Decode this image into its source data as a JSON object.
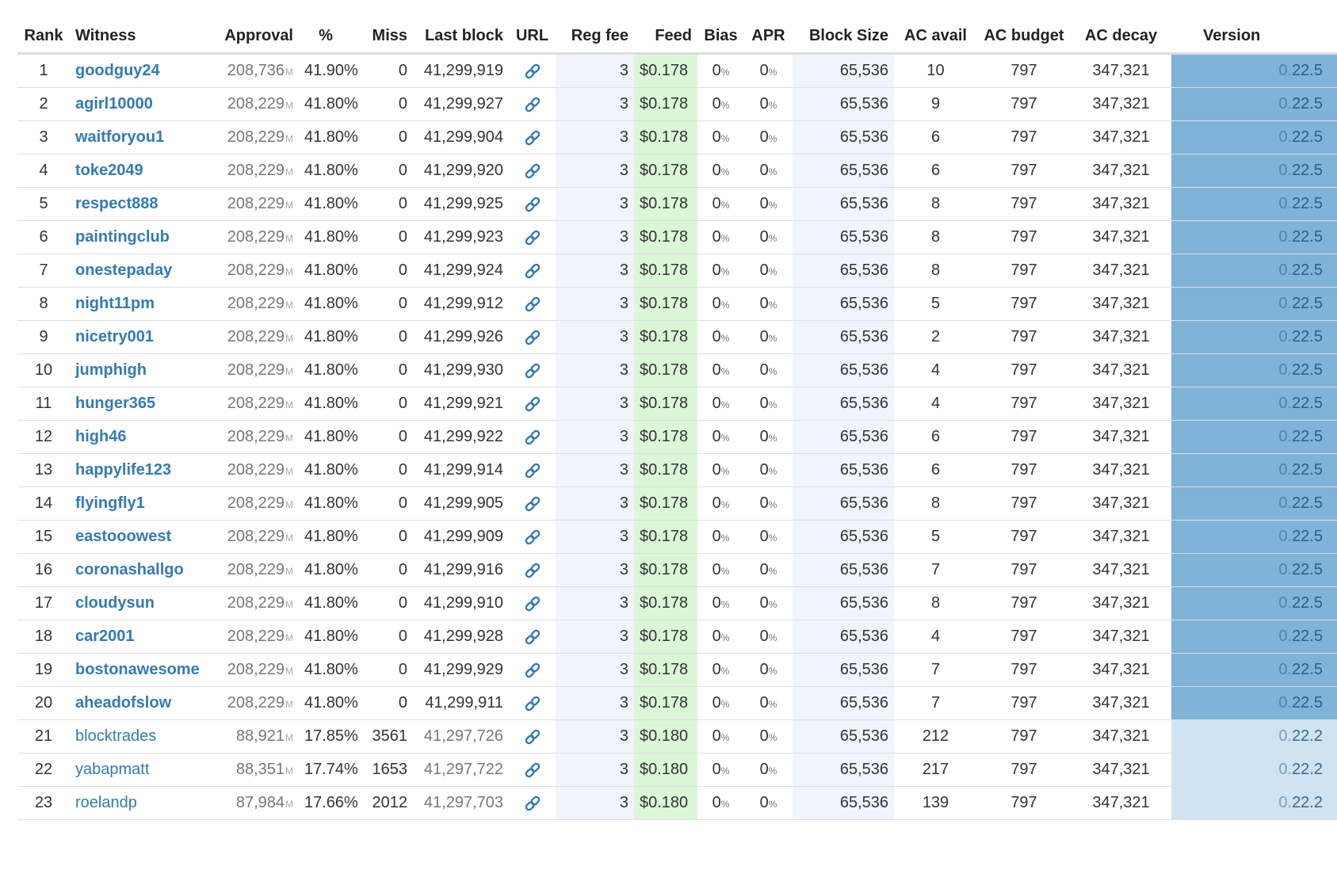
{
  "colors": {
    "link": "#337ab7",
    "version_active_bg": "#7fb3d8",
    "version_inactive_bg": "#cfe3f2",
    "feed_bg": "#dbf7d8",
    "regfee_bg": "#f2f4fd"
  },
  "units": {
    "approval": "M",
    "percent": "%"
  },
  "url_icon": "link-icon",
  "headers": {
    "rank": "Rank",
    "witness": "Witness",
    "approval": "Approval",
    "percent": "%",
    "miss": "Miss",
    "last_block": "Last block",
    "url": "URL",
    "reg_fee": "Reg fee",
    "feed": "Feed",
    "bias": "Bias",
    "apr": "APR",
    "block_size": "Block Size",
    "ac_avail": "AC avail",
    "ac_budget": "AC budget",
    "ac_decay": "AC decay",
    "version": "Version"
  },
  "rows": [
    {
      "rank": "1",
      "witness": "goodguy24",
      "approval": "208,736",
      "percent": "41.90%",
      "miss": "0",
      "last_block": "41,299,919",
      "reg_fee": "3",
      "feed": "$0.178",
      "bias": "0",
      "apr": "0",
      "block_size": "65,536",
      "ac_avail": "10",
      "ac_budget": "797",
      "ac_decay": "347,321",
      "version_lead": "0.",
      "version_rest": "22.5",
      "active": true
    },
    {
      "rank": "2",
      "witness": "agirl10000",
      "approval": "208,229",
      "percent": "41.80%",
      "miss": "0",
      "last_block": "41,299,927",
      "reg_fee": "3",
      "feed": "$0.178",
      "bias": "0",
      "apr": "0",
      "block_size": "65,536",
      "ac_avail": "9",
      "ac_budget": "797",
      "ac_decay": "347,321",
      "version_lead": "0.",
      "version_rest": "22.5",
      "active": true
    },
    {
      "rank": "3",
      "witness": "waitforyou1",
      "approval": "208,229",
      "percent": "41.80%",
      "miss": "0",
      "last_block": "41,299,904",
      "reg_fee": "3",
      "feed": "$0.178",
      "bias": "0",
      "apr": "0",
      "block_size": "65,536",
      "ac_avail": "6",
      "ac_budget": "797",
      "ac_decay": "347,321",
      "version_lead": "0.",
      "version_rest": "22.5",
      "active": true
    },
    {
      "rank": "4",
      "witness": "toke2049",
      "approval": "208,229",
      "percent": "41.80%",
      "miss": "0",
      "last_block": "41,299,920",
      "reg_fee": "3",
      "feed": "$0.178",
      "bias": "0",
      "apr": "0",
      "block_size": "65,536",
      "ac_avail": "6",
      "ac_budget": "797",
      "ac_decay": "347,321",
      "version_lead": "0.",
      "version_rest": "22.5",
      "active": true
    },
    {
      "rank": "5",
      "witness": "respect888",
      "approval": "208,229",
      "percent": "41.80%",
      "miss": "0",
      "last_block": "41,299,925",
      "reg_fee": "3",
      "feed": "$0.178",
      "bias": "0",
      "apr": "0",
      "block_size": "65,536",
      "ac_avail": "8",
      "ac_budget": "797",
      "ac_decay": "347,321",
      "version_lead": "0.",
      "version_rest": "22.5",
      "active": true
    },
    {
      "rank": "6",
      "witness": "paintingclub",
      "approval": "208,229",
      "percent": "41.80%",
      "miss": "0",
      "last_block": "41,299,923",
      "reg_fee": "3",
      "feed": "$0.178",
      "bias": "0",
      "apr": "0",
      "block_size": "65,536",
      "ac_avail": "8",
      "ac_budget": "797",
      "ac_decay": "347,321",
      "version_lead": "0.",
      "version_rest": "22.5",
      "active": true
    },
    {
      "rank": "7",
      "witness": "onestepaday",
      "approval": "208,229",
      "percent": "41.80%",
      "miss": "0",
      "last_block": "41,299,924",
      "reg_fee": "3",
      "feed": "$0.178",
      "bias": "0",
      "apr": "0",
      "block_size": "65,536",
      "ac_avail": "8",
      "ac_budget": "797",
      "ac_decay": "347,321",
      "version_lead": "0.",
      "version_rest": "22.5",
      "active": true
    },
    {
      "rank": "8",
      "witness": "night11pm",
      "approval": "208,229",
      "percent": "41.80%",
      "miss": "0",
      "last_block": "41,299,912",
      "reg_fee": "3",
      "feed": "$0.178",
      "bias": "0",
      "apr": "0",
      "block_size": "65,536",
      "ac_avail": "5",
      "ac_budget": "797",
      "ac_decay": "347,321",
      "version_lead": "0.",
      "version_rest": "22.5",
      "active": true
    },
    {
      "rank": "9",
      "witness": "nicetry001",
      "approval": "208,229",
      "percent": "41.80%",
      "miss": "0",
      "last_block": "41,299,926",
      "reg_fee": "3",
      "feed": "$0.178",
      "bias": "0",
      "apr": "0",
      "block_size": "65,536",
      "ac_avail": "2",
      "ac_budget": "797",
      "ac_decay": "347,321",
      "version_lead": "0.",
      "version_rest": "22.5",
      "active": true
    },
    {
      "rank": "10",
      "witness": "jumphigh",
      "approval": "208,229",
      "percent": "41.80%",
      "miss": "0",
      "last_block": "41,299,930",
      "reg_fee": "3",
      "feed": "$0.178",
      "bias": "0",
      "apr": "0",
      "block_size": "65,536",
      "ac_avail": "4",
      "ac_budget": "797",
      "ac_decay": "347,321",
      "version_lead": "0.",
      "version_rest": "22.5",
      "active": true
    },
    {
      "rank": "11",
      "witness": "hunger365",
      "approval": "208,229",
      "percent": "41.80%",
      "miss": "0",
      "last_block": "41,299,921",
      "reg_fee": "3",
      "feed": "$0.178",
      "bias": "0",
      "apr": "0",
      "block_size": "65,536",
      "ac_avail": "4",
      "ac_budget": "797",
      "ac_decay": "347,321",
      "version_lead": "0.",
      "version_rest": "22.5",
      "active": true
    },
    {
      "rank": "12",
      "witness": "high46",
      "approval": "208,229",
      "percent": "41.80%",
      "miss": "0",
      "last_block": "41,299,922",
      "reg_fee": "3",
      "feed": "$0.178",
      "bias": "0",
      "apr": "0",
      "block_size": "65,536",
      "ac_avail": "6",
      "ac_budget": "797",
      "ac_decay": "347,321",
      "version_lead": "0.",
      "version_rest": "22.5",
      "active": true
    },
    {
      "rank": "13",
      "witness": "happylife123",
      "approval": "208,229",
      "percent": "41.80%",
      "miss": "0",
      "last_block": "41,299,914",
      "reg_fee": "3",
      "feed": "$0.178",
      "bias": "0",
      "apr": "0",
      "block_size": "65,536",
      "ac_avail": "6",
      "ac_budget": "797",
      "ac_decay": "347,321",
      "version_lead": "0.",
      "version_rest": "22.5",
      "active": true
    },
    {
      "rank": "14",
      "witness": "flyingfly1",
      "approval": "208,229",
      "percent": "41.80%",
      "miss": "0",
      "last_block": "41,299,905",
      "reg_fee": "3",
      "feed": "$0.178",
      "bias": "0",
      "apr": "0",
      "block_size": "65,536",
      "ac_avail": "8",
      "ac_budget": "797",
      "ac_decay": "347,321",
      "version_lead": "0.",
      "version_rest": "22.5",
      "active": true
    },
    {
      "rank": "15",
      "witness": "eastooowest",
      "approval": "208,229",
      "percent": "41.80%",
      "miss": "0",
      "last_block": "41,299,909",
      "reg_fee": "3",
      "feed": "$0.178",
      "bias": "0",
      "apr": "0",
      "block_size": "65,536",
      "ac_avail": "5",
      "ac_budget": "797",
      "ac_decay": "347,321",
      "version_lead": "0.",
      "version_rest": "22.5",
      "active": true
    },
    {
      "rank": "16",
      "witness": "coronashallgo",
      "approval": "208,229",
      "percent": "41.80%",
      "miss": "0",
      "last_block": "41,299,916",
      "reg_fee": "3",
      "feed": "$0.178",
      "bias": "0",
      "apr": "0",
      "block_size": "65,536",
      "ac_avail": "7",
      "ac_budget": "797",
      "ac_decay": "347,321",
      "version_lead": "0.",
      "version_rest": "22.5",
      "active": true
    },
    {
      "rank": "17",
      "witness": "cloudysun",
      "approval": "208,229",
      "percent": "41.80%",
      "miss": "0",
      "last_block": "41,299,910",
      "reg_fee": "3",
      "feed": "$0.178",
      "bias": "0",
      "apr": "0",
      "block_size": "65,536",
      "ac_avail": "8",
      "ac_budget": "797",
      "ac_decay": "347,321",
      "version_lead": "0.",
      "version_rest": "22.5",
      "active": true
    },
    {
      "rank": "18",
      "witness": "car2001",
      "approval": "208,229",
      "percent": "41.80%",
      "miss": "0",
      "last_block": "41,299,928",
      "reg_fee": "3",
      "feed": "$0.178",
      "bias": "0",
      "apr": "0",
      "block_size": "65,536",
      "ac_avail": "4",
      "ac_budget": "797",
      "ac_decay": "347,321",
      "version_lead": "0.",
      "version_rest": "22.5",
      "active": true
    },
    {
      "rank": "19",
      "witness": "bostonawesome",
      "approval": "208,229",
      "percent": "41.80%",
      "miss": "0",
      "last_block": "41,299,929",
      "reg_fee": "3",
      "feed": "$0.178",
      "bias": "0",
      "apr": "0",
      "block_size": "65,536",
      "ac_avail": "7",
      "ac_budget": "797",
      "ac_decay": "347,321",
      "version_lead": "0.",
      "version_rest": "22.5",
      "active": true
    },
    {
      "rank": "20",
      "witness": "aheadofslow",
      "approval": "208,229",
      "percent": "41.80%",
      "miss": "0",
      "last_block": "41,299,911",
      "reg_fee": "3",
      "feed": "$0.178",
      "bias": "0",
      "apr": "0",
      "block_size": "65,536",
      "ac_avail": "7",
      "ac_budget": "797",
      "ac_decay": "347,321",
      "version_lead": "0.",
      "version_rest": "22.5",
      "active": true
    },
    {
      "rank": "21",
      "witness": "blocktrades",
      "approval": "88,921",
      "percent": "17.85%",
      "miss": "3561",
      "last_block": "41,297,726",
      "reg_fee": "3",
      "feed": "$0.180",
      "bias": "0",
      "apr": "0",
      "block_size": "65,536",
      "ac_avail": "212",
      "ac_budget": "797",
      "ac_decay": "347,321",
      "version_lead": "0.",
      "version_rest": "22.2",
      "active": false
    },
    {
      "rank": "22",
      "witness": "yabapmatt",
      "approval": "88,351",
      "percent": "17.74%",
      "miss": "1653",
      "last_block": "41,297,722",
      "reg_fee": "3",
      "feed": "$0.180",
      "bias": "0",
      "apr": "0",
      "block_size": "65,536",
      "ac_avail": "217",
      "ac_budget": "797",
      "ac_decay": "347,321",
      "version_lead": "0.",
      "version_rest": "22.2",
      "active": false
    },
    {
      "rank": "23",
      "witness": "roelandp",
      "approval": "87,984",
      "percent": "17.66%",
      "miss": "2012",
      "last_block": "41,297,703",
      "reg_fee": "3",
      "feed": "$0.180",
      "bias": "0",
      "apr": "0",
      "block_size": "65,536",
      "ac_avail": "139",
      "ac_budget": "797",
      "ac_decay": "347,321",
      "version_lead": "0.",
      "version_rest": "22.2",
      "active": false
    }
  ]
}
